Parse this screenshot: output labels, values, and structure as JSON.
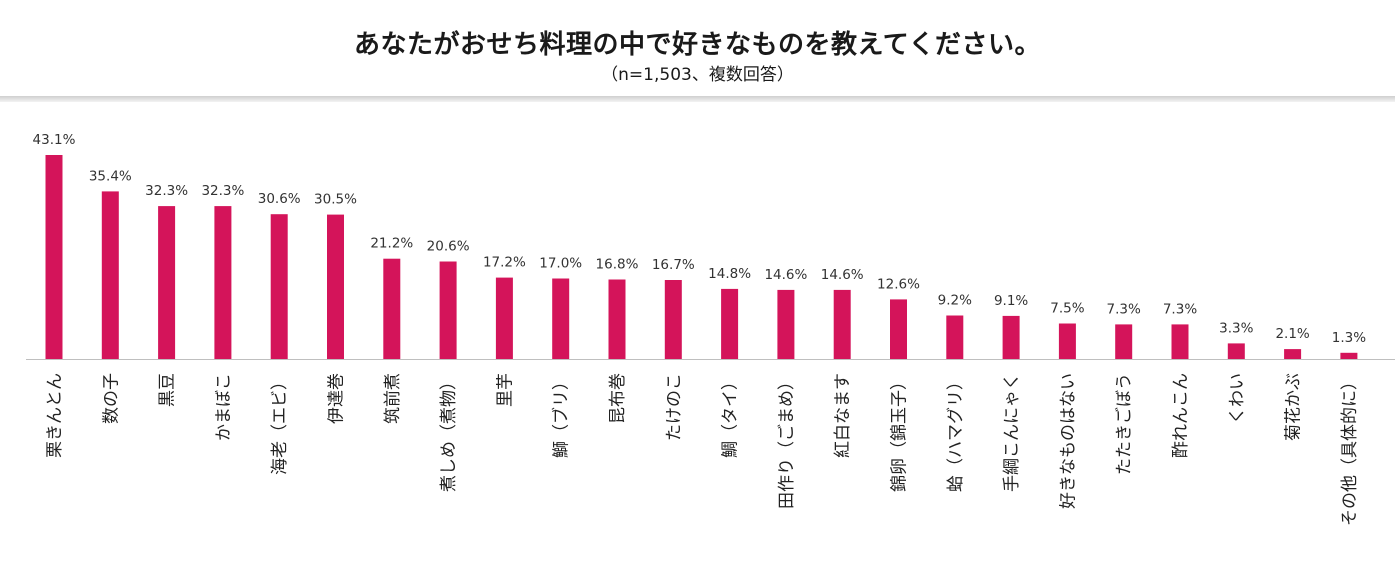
{
  "header": {
    "title": "あなたがおせち料理の中で好きなものを教えてください。",
    "subtitle": "（n=1,503、複数回答）"
  },
  "chart_data": {
    "type": "bar",
    "title": "あなたがおせち料理の中で好きなものを教えてください。",
    "subtitle": "（n=1,503、複数回答）",
    "bar_color": "#d4145a",
    "ylim": [
      0,
      50
    ],
    "grid": false,
    "categories": [
      "栗きんとん",
      "数の子",
      "黒豆",
      "かまぼこ",
      "海老（エビ）",
      "伊達巻",
      "筑前煮",
      "煮しめ（煮物）",
      "里芋",
      "鰤（ブリ）",
      "昆布巻",
      "たけのこ",
      "鯛（タイ）",
      "田作り（ごまめ）",
      "紅白なます",
      "錦卵（錦玉子）",
      "蛤（ハマグリ）",
      "手綱こんにゃく",
      "好きなものはない",
      "たたきごぼう",
      "酢れんこん",
      "くわい",
      "菊花かぶ",
      "その他（具体的に）"
    ],
    "values": [
      43.1,
      35.4,
      32.3,
      32.3,
      30.6,
      30.5,
      21.2,
      20.6,
      17.2,
      17.0,
      16.8,
      16.7,
      14.8,
      14.6,
      14.6,
      12.6,
      9.2,
      9.1,
      7.5,
      7.3,
      7.3,
      3.3,
      2.1,
      1.3
    ],
    "value_labels": [
      "43.1%",
      "35.4%",
      "32.3%",
      "32.3%",
      "30.6%",
      "30.5%",
      "21.2%",
      "20.6%",
      "17.2%",
      "17.0%",
      "16.8%",
      "16.7%",
      "14.8%",
      "14.6%",
      "14.6%",
      "12.6%",
      "9.2%",
      "9.1%",
      "7.5%",
      "7.3%",
      "7.3%",
      "3.3%",
      "2.1%",
      "1.3%"
    ]
  }
}
